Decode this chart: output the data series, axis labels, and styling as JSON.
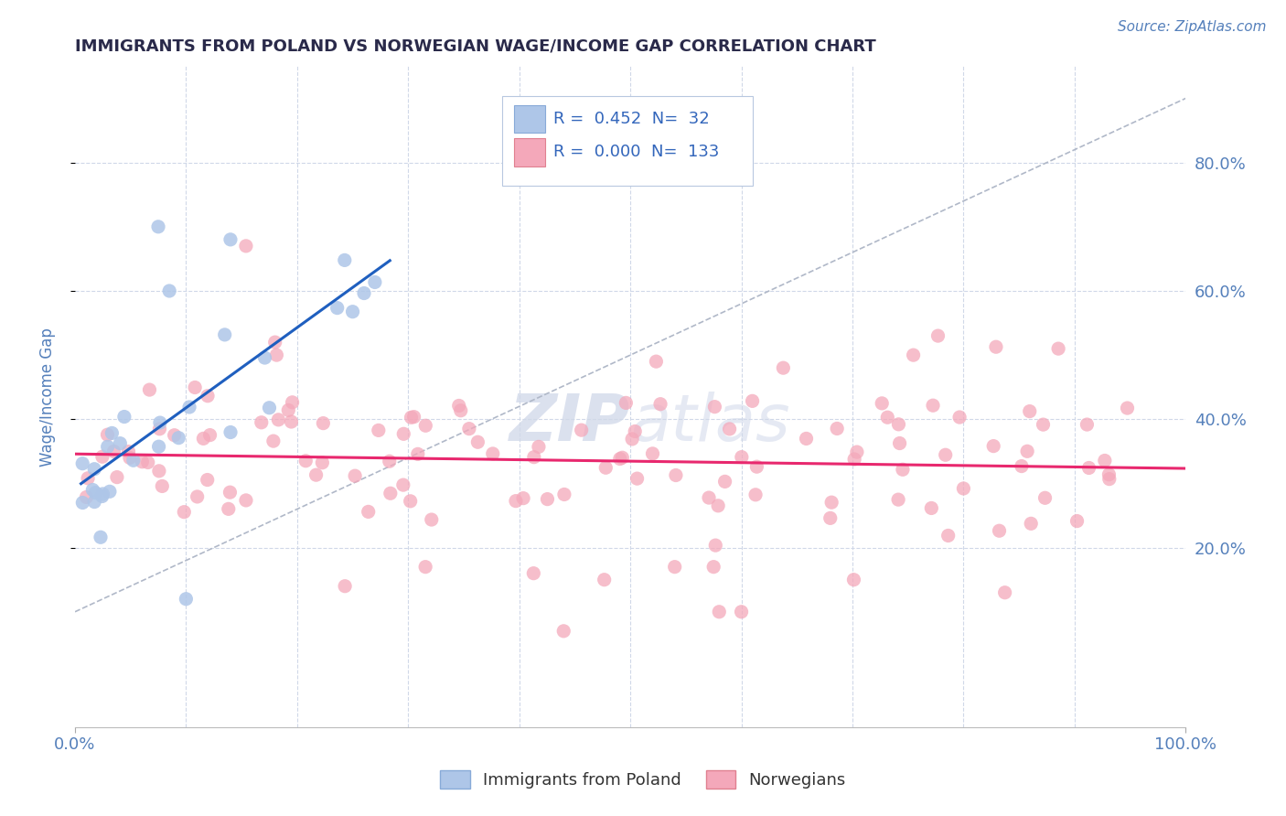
{
  "title": "IMMIGRANTS FROM POLAND VS NORWEGIAN WAGE/INCOME GAP CORRELATION CHART",
  "source_text": "Source: ZipAtlas.com",
  "ylabel": "Wage/Income Gap",
  "xlim": [
    0.0,
    1.0
  ],
  "ylim": [
    -0.08,
    0.95
  ],
  "y_tick_values": [
    0.2,
    0.4,
    0.6,
    0.8
  ],
  "y_tick_labels": [
    "20.0%",
    "40.0%",
    "60.0%",
    "80.0%"
  ],
  "poland_R": "0.452",
  "poland_N": "32",
  "norway_R": "0.000",
  "norway_N": "133",
  "poland_color": "#aec6e8",
  "norway_color": "#f4a8ba",
  "poland_line_color": "#1f5fbf",
  "norway_line_color": "#e8286e",
  "diag_line_color": "#b0b8c8",
  "watermark_color": "#cdd5e8",
  "title_color": "#2a2a4a",
  "source_color": "#5580bb",
  "axis_label_color": "#5580bb",
  "tick_label_color": "#5580bb",
  "grid_color": "#d0d8e8",
  "grid_style": "--"
}
